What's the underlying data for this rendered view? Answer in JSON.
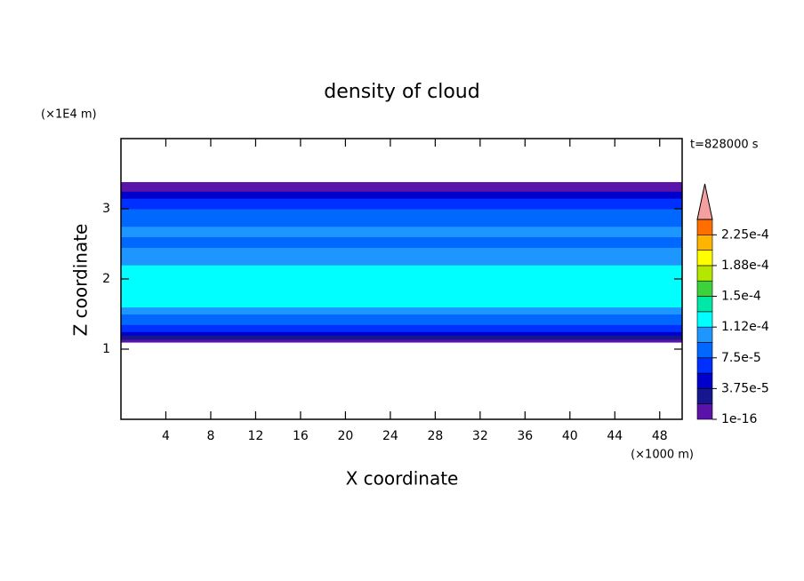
{
  "chart_data": {
    "type": "contour",
    "title": "density of cloud",
    "x_label": "X coordinate",
    "y_label": "Z coordinate",
    "x_unit": "(×1000 m)",
    "y_unit": "(×1E4 m)",
    "annotation": "t=828000 s",
    "xlim": [
      0,
      50
    ],
    "xticks": [
      4,
      8,
      12,
      16,
      20,
      24,
      28,
      32,
      36,
      40,
      44,
      48
    ],
    "ylim": [
      0,
      4
    ],
    "yticks": [
      1,
      2,
      3
    ],
    "z_edges": [
      1.1,
      1.14,
      1.2,
      1.25,
      1.35,
      1.5,
      1.6,
      2.2,
      2.45,
      2.6,
      2.75,
      3.0,
      3.15,
      3.25,
      3.38
    ],
    "values": [
      1e-05,
      2.5e-05,
      4.5e-05,
      6.5e-05,
      8.5e-05,
      0.0001,
      0.00012,
      0.0001,
      8e-05,
      9.5e-05,
      7.8e-05,
      6e-05,
      4.5e-05,
      1e-05
    ],
    "levels": [
      1e-16,
      1.875e-05,
      3.75e-05,
      5.625e-05,
      7.5e-05,
      9.375e-05,
      0.0001125,
      0.00013125,
      0.00015,
      0.00016875,
      0.0001875,
      0.00020625,
      0.000225,
      0.00024375
    ],
    "colors": [
      "#5a12a8",
      "#16168e",
      "#0000cd",
      "#0030ff",
      "#0068ff",
      "#1e96ff",
      "#00ffff",
      "#00e8a8",
      "#3cd23c",
      "#b4e600",
      "#ffff00",
      "#ffb400",
      "#ff6e00"
    ],
    "extend_color": "#f4a0a0",
    "colorbar_ticks": [
      {
        "value": 1e-16,
        "label": "1e-16"
      },
      {
        "value": 3.75e-05,
        "label": "3.75e-5"
      },
      {
        "value": 7.5e-05,
        "label": "7.5e-5"
      },
      {
        "value": 0.0001125,
        "label": "1.12e-4"
      },
      {
        "value": 0.00015,
        "label": "1.5e-4"
      },
      {
        "value": 0.0001875,
        "label": "1.88e-4"
      },
      {
        "value": 0.000225,
        "label": "2.25e-4"
      }
    ]
  }
}
